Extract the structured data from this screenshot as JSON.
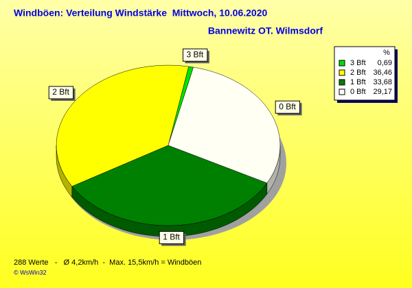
{
  "chart_data": {
    "type": "pie",
    "title": "Windböen: Verteilung Windstärke  Mittwoch, 10.06.2020",
    "subtitle": "Bannewitz OT. Wilmsdorf",
    "legend_header": "%",
    "categories": [
      "3 Bft",
      "2 Bft",
      "1 Bft",
      "0 Bft"
    ],
    "values": [
      0.69,
      36.46,
      33.68,
      29.17
    ],
    "value_labels": [
      "0,69",
      "36,46",
      "33,68",
      "29,17"
    ],
    "colors": [
      "#00e000",
      "#ffff00",
      "#008000",
      "#fffff4"
    ],
    "footer": "288 Werte   -   Ø 4,2km/h  -  Max. 15,5km/h = Windböen",
    "credit": "© WsWin32"
  }
}
